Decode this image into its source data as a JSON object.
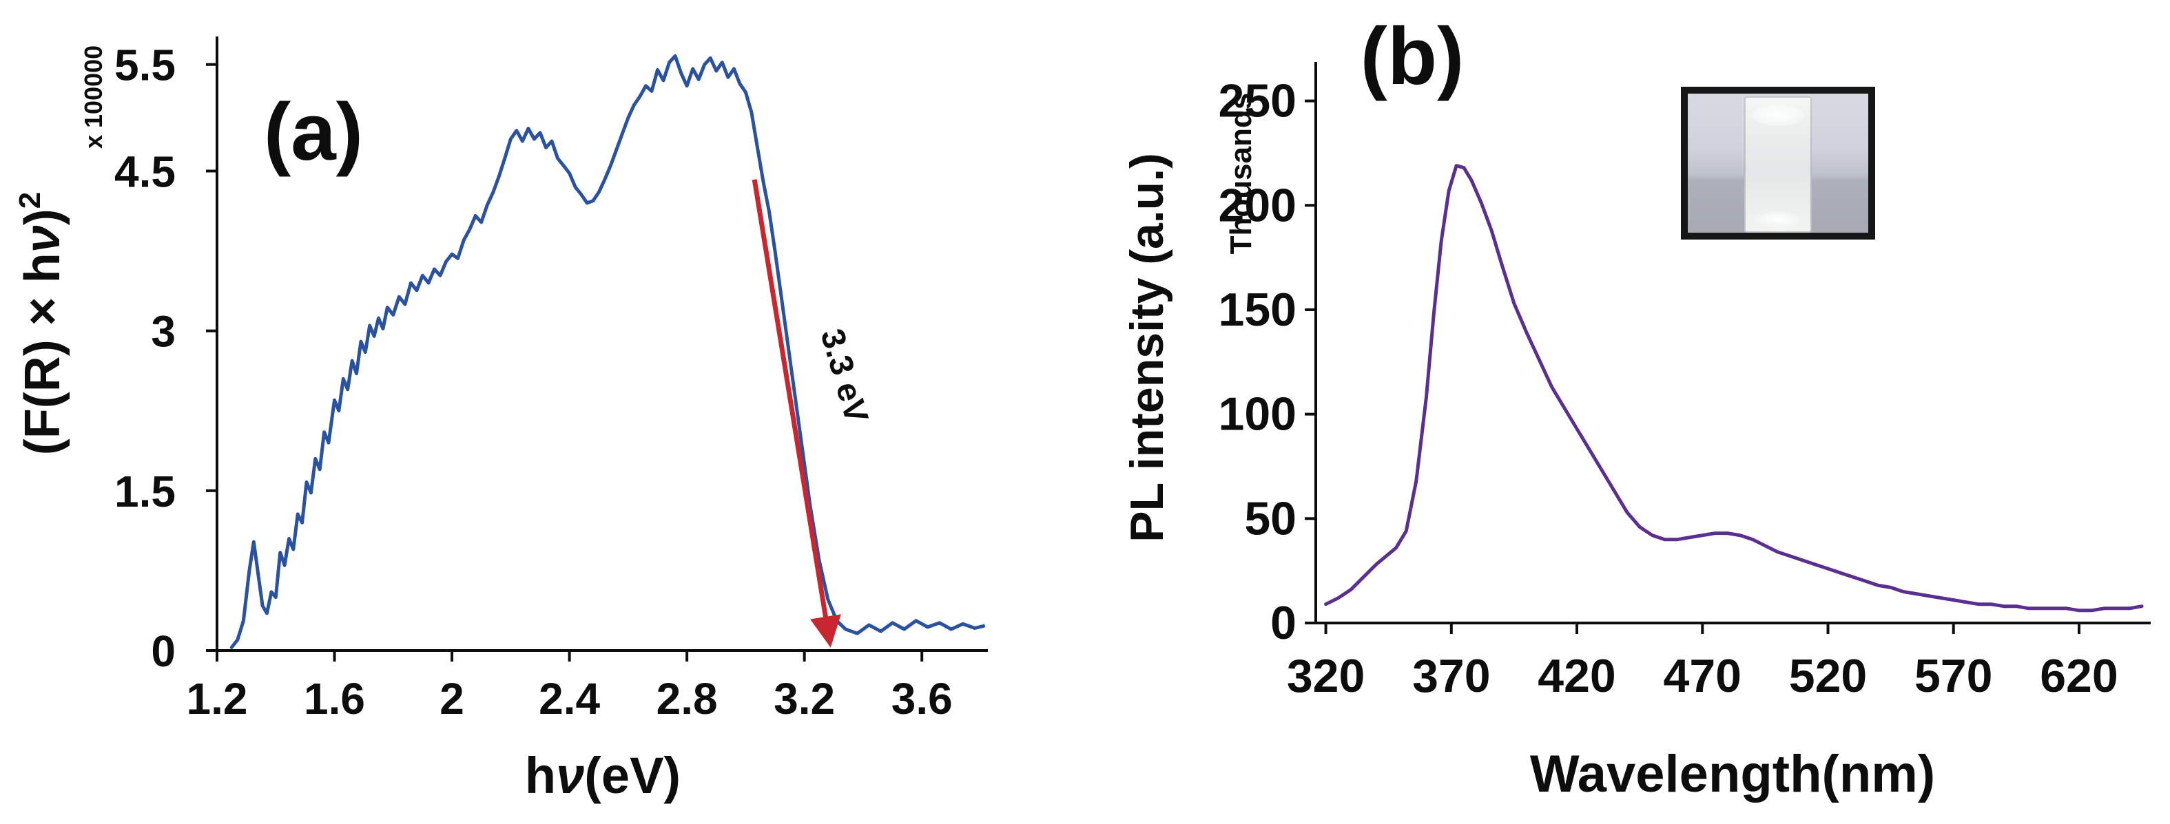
{
  "figure": {
    "background": "#ffffff"
  },
  "chart_data": [
    {
      "id": "tauc",
      "type": "line",
      "panel_label": "(a)",
      "panel_label_color": "#ea1d25",
      "xlabel_pre": "h",
      "xlabel_nu": "ν",
      "xlabel_post": "(eV)",
      "ylabel_pre": "(F(R) × h",
      "ylabel_nu": "ν",
      "ylabel_post": ")",
      "ylabel_sup": "2",
      "y_multiplier_label": "x 100000",
      "xlim": [
        1.2,
        3.82
      ],
      "ylim": [
        0,
        5.75
      ],
      "xtick_values": [
        1.2,
        1.6,
        2.0,
        2.4,
        2.8,
        3.2,
        3.6
      ],
      "xtick_labels": [
        "1.2",
        "1.6",
        "2",
        "2.4",
        "2.8",
        "3.2",
        "3.6"
      ],
      "ytick_values": [
        0,
        1.5,
        3,
        4.5,
        5.5
      ],
      "ytick_labels": [
        "0",
        "1.5",
        "3",
        "4.5",
        "5.5"
      ],
      "grid": false,
      "legend": false,
      "line_color": "#2a52a0",
      "annotation": {
        "text": "3.3 eV",
        "color": "#c82730",
        "x1": 3.03,
        "y1": 4.42,
        "x2": 3.285,
        "y2": 0.1,
        "label_x": 3.3,
        "label_y": 2.55,
        "label_rotation": 74
      },
      "series": [
        {
          "name": "tauc-curve",
          "x": [
            1.25,
            1.27,
            1.29,
            1.31,
            1.325,
            1.34,
            1.355,
            1.37,
            1.385,
            1.4,
            1.415,
            1.43,
            1.445,
            1.46,
            1.475,
            1.49,
            1.505,
            1.52,
            1.535,
            1.55,
            1.565,
            1.58,
            1.6,
            1.615,
            1.63,
            1.645,
            1.66,
            1.675,
            1.69,
            1.705,
            1.72,
            1.735,
            1.75,
            1.765,
            1.78,
            1.8,
            1.82,
            1.84,
            1.86,
            1.88,
            1.9,
            1.92,
            1.94,
            1.96,
            1.98,
            2.0,
            2.02,
            2.04,
            2.06,
            2.08,
            2.1,
            2.12,
            2.14,
            2.16,
            2.18,
            2.2,
            2.22,
            2.24,
            2.26,
            2.28,
            2.3,
            2.32,
            2.34,
            2.36,
            2.38,
            2.4,
            2.42,
            2.44,
            2.46,
            2.48,
            2.5,
            2.52,
            2.54,
            2.56,
            2.58,
            2.6,
            2.62,
            2.64,
            2.66,
            2.68,
            2.7,
            2.72,
            2.74,
            2.76,
            2.78,
            2.8,
            2.82,
            2.84,
            2.86,
            2.88,
            2.9,
            2.92,
            2.94,
            2.96,
            2.98,
            3.0,
            3.02,
            3.04,
            3.06,
            3.08,
            3.1,
            3.13,
            3.16,
            3.19,
            3.22,
            3.25,
            3.28,
            3.31,
            3.34,
            3.38,
            3.42,
            3.46,
            3.5,
            3.54,
            3.58,
            3.62,
            3.66,
            3.7,
            3.74,
            3.78,
            3.81
          ],
          "y": [
            0.03,
            0.1,
            0.28,
            0.75,
            1.02,
            0.72,
            0.42,
            0.35,
            0.55,
            0.5,
            0.92,
            0.8,
            1.05,
            0.95,
            1.28,
            1.2,
            1.58,
            1.48,
            1.8,
            1.7,
            2.05,
            1.95,
            2.35,
            2.25,
            2.55,
            2.45,
            2.72,
            2.6,
            2.9,
            2.8,
            3.05,
            2.95,
            3.12,
            3.02,
            3.22,
            3.15,
            3.32,
            3.25,
            3.45,
            3.38,
            3.52,
            3.45,
            3.58,
            3.52,
            3.65,
            3.72,
            3.68,
            3.85,
            3.95,
            4.08,
            4.02,
            4.18,
            4.3,
            4.45,
            4.62,
            4.8,
            4.88,
            4.78,
            4.9,
            4.8,
            4.86,
            4.72,
            4.78,
            4.62,
            4.55,
            4.48,
            4.35,
            4.28,
            4.2,
            4.22,
            4.3,
            4.42,
            4.55,
            4.7,
            4.85,
            5.0,
            5.12,
            5.2,
            5.3,
            5.25,
            5.45,
            5.35,
            5.52,
            5.58,
            5.42,
            5.3,
            5.46,
            5.36,
            5.5,
            5.56,
            5.44,
            5.52,
            5.38,
            5.46,
            5.32,
            5.24,
            5.05,
            4.72,
            4.4,
            4.12,
            3.75,
            3.15,
            2.55,
            1.95,
            1.35,
            0.85,
            0.48,
            0.28,
            0.2,
            0.16,
            0.24,
            0.18,
            0.26,
            0.2,
            0.28,
            0.22,
            0.26,
            0.2,
            0.25,
            0.21,
            0.23
          ]
        }
      ]
    },
    {
      "id": "pl",
      "type": "line",
      "panel_label": "(b)",
      "panel_label_color": "#ea1d25",
      "xlabel": "Wavelength(nm)",
      "ylabel": "PL intensity (a.u.)",
      "y_multiplier_label": "Thousands",
      "xlim": [
        316,
        648
      ],
      "ylim": [
        0,
        268
      ],
      "xtick_values": [
        320,
        370,
        420,
        470,
        520,
        570,
        620
      ],
      "xtick_labels": [
        "320",
        "370",
        "420",
        "470",
        "520",
        "570",
        "620"
      ],
      "ytick_values": [
        0,
        50,
        100,
        150,
        200,
        250
      ],
      "ytick_labels": [
        "0",
        "50",
        "100",
        "150",
        "200",
        "250"
      ],
      "grid": false,
      "legend": false,
      "line_color": "#5a2f90",
      "inset": {
        "type": "photo",
        "content": "cuvette with white suspension"
      },
      "series": [
        {
          "name": "pl-spectrum",
          "x": [
            320,
            325,
            330,
            335,
            340,
            344,
            348,
            352,
            356,
            360,
            363,
            366,
            369,
            372,
            375,
            378,
            382,
            386,
            390,
            395,
            400,
            405,
            410,
            415,
            420,
            425,
            430,
            435,
            440,
            445,
            450,
            455,
            460,
            465,
            470,
            475,
            480,
            485,
            490,
            495,
            500,
            505,
            510,
            515,
            520,
            525,
            530,
            535,
            540,
            545,
            550,
            555,
            560,
            565,
            570,
            575,
            580,
            585,
            590,
            595,
            600,
            605,
            610,
            615,
            620,
            625,
            630,
            635,
            640,
            645
          ],
          "y": [
            9,
            12,
            16,
            22,
            28,
            32,
            36,
            44,
            68,
            108,
            148,
            183,
            207,
            219,
            218,
            212,
            201,
            188,
            172,
            153,
            139,
            126,
            113,
            103,
            93,
            83,
            73,
            63,
            53,
            46,
            42,
            40,
            40,
            41,
            42,
            43,
            43,
            42,
            40,
            37,
            34,
            32,
            30,
            28,
            26,
            24,
            22,
            20,
            18,
            17,
            15,
            14,
            13,
            12,
            11,
            10,
            9,
            9,
            8,
            8,
            7,
            7,
            7,
            7,
            6,
            6,
            7,
            7,
            7,
            8
          ]
        }
      ]
    }
  ]
}
